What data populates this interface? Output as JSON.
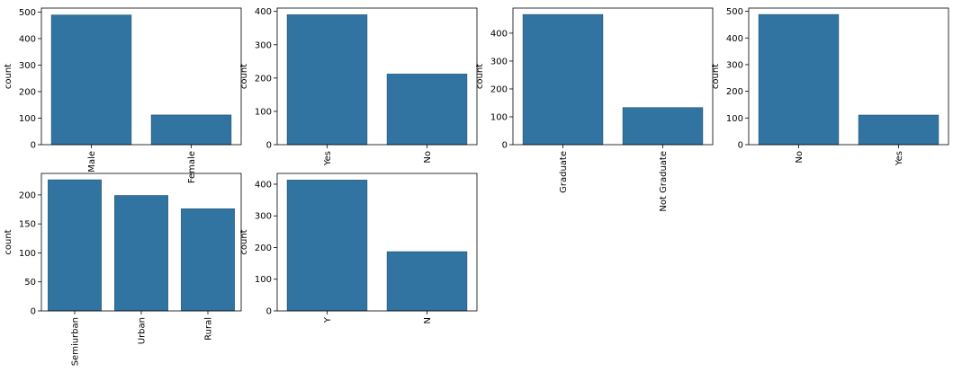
{
  "colors": {
    "bar": "#3274a1",
    "bar_edge": "#1f4e70",
    "spine": "#000000"
  },
  "chart_data": [
    {
      "type": "bar",
      "ylabel": "count",
      "categories": [
        "Male",
        "Female"
      ],
      "values": [
        489,
        112
      ],
      "ylim": [
        0,
        515
      ],
      "yticks": [
        0,
        100,
        200,
        300,
        400,
        500
      ]
    },
    {
      "type": "bar",
      "ylabel": "count",
      "categories": [
        "Yes",
        "No"
      ],
      "values": [
        390,
        212
      ],
      "ylim": [
        0,
        410
      ],
      "yticks": [
        0,
        100,
        200,
        300,
        400
      ]
    },
    {
      "type": "bar",
      "ylabel": "count",
      "categories": [
        "Graduate",
        "Not Graduate"
      ],
      "values": [
        467,
        133
      ],
      "ylim": [
        0,
        490
      ],
      "yticks": [
        0,
        100,
        200,
        300,
        400
      ]
    },
    {
      "type": "bar",
      "ylabel": "count",
      "categories": [
        "No",
        "Yes"
      ],
      "values": [
        488,
        111
      ],
      "ylim": [
        0,
        512
      ],
      "yticks": [
        0,
        100,
        200,
        300,
        400,
        500
      ]
    },
    {
      "type": "bar",
      "ylabel": "count",
      "categories": [
        "Semiurban",
        "Urban",
        "Rural"
      ],
      "values": [
        226,
        199,
        176
      ],
      "ylim": [
        0,
        237
      ],
      "yticks": [
        0,
        50,
        100,
        150,
        200
      ]
    },
    {
      "type": "bar",
      "ylabel": "count",
      "categories": [
        "Y",
        "N"
      ],
      "values": [
        413,
        187
      ],
      "ylim": [
        0,
        434
      ],
      "yticks": [
        0,
        100,
        200,
        300,
        400
      ]
    }
  ]
}
